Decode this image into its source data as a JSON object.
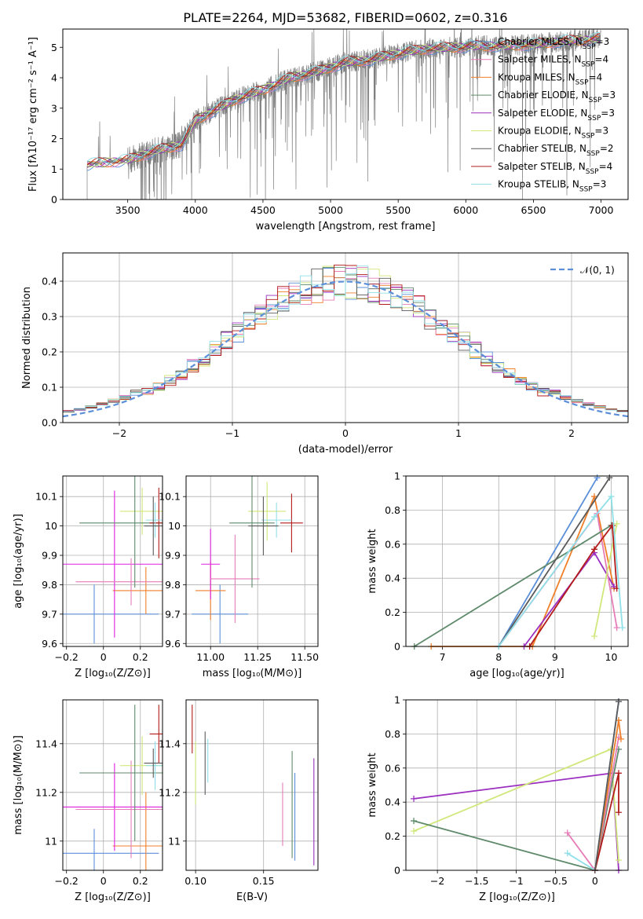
{
  "title": "PLATE=2264, MJD=53682, FIBERID=0602, z=0.316",
  "colors": [
    "#5b8fd9",
    "#f07f2a",
    "#9b2fc0",
    "#e67db8",
    "#d0e87a",
    "#5f8a6b",
    "#8b8b8b",
    "#a0b8e0",
    "#b31b1b",
    "#5a5a5a",
    "#90e0e8",
    "#e020e0"
  ],
  "chart_data": [
    {
      "type": "line",
      "name": "spectrum",
      "xlabel": "wavelength [Angstrom, rest frame]",
      "ylabel": "Flux [fλ10⁻¹⁷ erg cm⁻² s⁻¹ A⁻¹]",
      "xlim": [
        3020,
        7200
      ],
      "ylim": [
        0,
        5.6
      ],
      "xticks": [
        3500,
        4000,
        4500,
        5000,
        5500,
        6000,
        6500,
        7000
      ],
      "yticks": [
        0,
        1,
        2,
        3,
        4,
        5
      ],
      "continuum": {
        "x": [
          3200,
          3500,
          3700,
          3900,
          4000,
          4300,
          4500,
          4700,
          4900,
          5100,
          5300,
          5500,
          5700,
          5900,
          6100,
          6300,
          6500,
          6700,
          6900,
          7000
        ],
        "y": [
          1.15,
          1.3,
          1.6,
          1.8,
          2.6,
          3.3,
          3.6,
          4.0,
          4.2,
          4.5,
          4.6,
          4.8,
          4.95,
          5.0,
          5.05,
          5.05,
          5.1,
          5.2,
          5.25,
          5.3
        ]
      },
      "legend": [
        "Chabrier MILES, N_SSP=3",
        "Salpeter MILES, N_SSP=4",
        "Kroupa MILES, N_SSP=4",
        "Chabrier ELODIE, N_SSP=3",
        "Salpeter ELODIE, N_SSP=3",
        "Kroupa ELODIE, N_SSP=3",
        "Chabrier STELIB, N_SSP=2",
        "Salpeter STELIB, N_SSP=4",
        "Kroupa STELIB, N_SSP=3"
      ],
      "legend_colors": [
        "#5b8fd9",
        "#e67db8",
        "#f07f2a",
        "#5f8a6b",
        "#9b2fc0",
        "#d0e87a",
        "#5a5a5a",
        "#b31b1b",
        "#90e0e8"
      ]
    },
    {
      "type": "histogram",
      "name": "residuals",
      "xlabel": "(data-model)/error",
      "ylabel": "Normed distribution",
      "xlim": [
        -2.5,
        2.5
      ],
      "ylim": [
        0,
        0.48
      ],
      "xticks": [
        -2,
        -1,
        0,
        1,
        2
      ],
      "yticks": [
        0.0,
        0.1,
        0.2,
        0.3,
        0.4
      ],
      "legend": "𝒩(0, 1)",
      "bin_width": 0.1
    },
    {
      "type": "errorbar",
      "name": "age-vs-Z",
      "xlabel": "Z [log₁₀(Z/Z⊙)]",
      "ylabel": "age  [log₁₀(age/yr)]",
      "xlim": [
        -0.22,
        0.32
      ],
      "ylim": [
        9.59,
        10.17
      ],
      "xticks": [
        -0.2,
        0.0,
        0.2
      ],
      "yticks": [
        9.6,
        9.7,
        9.8,
        9.9,
        10.0,
        10.1
      ],
      "points": [
        {
          "x": -0.05,
          "xerr": 0.35,
          "y": 9.7,
          "yerr": 0.1,
          "c": 0
        },
        {
          "x": 0.23,
          "xerr": 0.18,
          "y": 9.78,
          "yerr": 0.08,
          "c": 1
        },
        {
          "x": 0.06,
          "xerr": 0.3,
          "y": 9.87,
          "yerr": 0.25,
          "c": 11
        },
        {
          "x": 0.15,
          "xerr": 0.3,
          "y": 9.81,
          "yerr": 0.08,
          "c": 3
        },
        {
          "x": 0.21,
          "xerr": 0.12,
          "y": 10.05,
          "yerr": 0.08,
          "c": 4
        },
        {
          "x": 0.17,
          "xerr": 0.3,
          "y": 10.01,
          "yerr": 0.22,
          "c": 5
        },
        {
          "x": 0.3,
          "xerr": 0.05,
          "y": 10.01,
          "yerr": 0.12,
          "c": 8
        },
        {
          "x": 0.28,
          "xerr": 0.05,
          "y": 10.02,
          "yerr": 0.06,
          "c": 10
        },
        {
          "x": 0.27,
          "xerr": 0.05,
          "y": 10.0,
          "yerr": 0.1,
          "c": 9
        }
      ]
    },
    {
      "type": "errorbar",
      "name": "age-vs-mass",
      "xlabel": "mass [log₁₀(M/M⊙)]",
      "ylabel": "",
      "xlim": [
        10.87,
        11.57
      ],
      "ylim": [
        9.59,
        10.17
      ],
      "xticks": [
        11.0,
        11.25,
        11.5
      ],
      "xticklabels": [
        "11.00",
        "11.25",
        "11.50"
      ],
      "yticks": [
        9.6,
        9.7,
        9.8,
        9.9,
        10.0,
        10.1
      ],
      "points": [
        {
          "x": 11.05,
          "xerr": 0.15,
          "y": 9.7,
          "yerr": 0.1,
          "c": 0
        },
        {
          "x": 11.0,
          "xerr": 0.08,
          "y": 9.78,
          "yerr": 0.1,
          "c": 1
        },
        {
          "x": 11.0,
          "xerr": 0.05,
          "y": 9.87,
          "yerr": 0.12,
          "c": 11
        },
        {
          "x": 11.13,
          "xerr": 0.13,
          "y": 9.82,
          "yerr": 0.15,
          "c": 3
        },
        {
          "x": 11.3,
          "xerr": 0.1,
          "y": 10.05,
          "yerr": 0.1,
          "c": 4
        },
        {
          "x": 11.22,
          "xerr": 0.12,
          "y": 10.01,
          "yerr": 0.22,
          "c": 5
        },
        {
          "x": 11.43,
          "xerr": 0.06,
          "y": 10.01,
          "yerr": 0.1,
          "c": 8
        },
        {
          "x": 11.35,
          "xerr": 0.08,
          "y": 10.02,
          "yerr": 0.06,
          "c": 10
        },
        {
          "x": 11.28,
          "xerr": 0.08,
          "y": 10.0,
          "yerr": 0.1,
          "c": 9
        }
      ]
    },
    {
      "type": "line",
      "name": "weight-vs-age",
      "xlabel": "age  [log₁₀(age/yr)]",
      "ylabel": "mass weight",
      "xlim": [
        6.35,
        10.3
      ],
      "ylim": [
        0,
        1.0
      ],
      "xticks": [
        7,
        8,
        9,
        10
      ],
      "yticks": [
        0.0,
        0.2,
        0.4,
        0.6,
        0.8,
        1.0
      ],
      "series": [
        {
          "c": 0,
          "x": [
            8.0,
            9.75
          ],
          "y": [
            0.0,
            0.99
          ]
        },
        {
          "c": 1,
          "x": [
            6.8,
            8.6,
            9.7,
            10.05
          ],
          "y": [
            0.0,
            0.0,
            0.88,
            0.34
          ]
        },
        {
          "c": 2,
          "x": [
            8.45,
            9.7,
            10.05
          ],
          "y": [
            0.0,
            0.55,
            0.35
          ]
        },
        {
          "c": 3,
          "x": [
            8.0,
            9.75,
            10.1
          ],
          "y": [
            0.0,
            0.78,
            0.11
          ]
        },
        {
          "c": 4,
          "x": [
            9.7,
            10.1
          ],
          "y": [
            0.06,
            0.72
          ]
        },
        {
          "c": 5,
          "x": [
            6.5,
            10.0
          ],
          "y": [
            0.0,
            0.71
          ]
        },
        {
          "c": 9,
          "x": [
            8.0,
            9.97
          ],
          "y": [
            0.0,
            0.99
          ]
        },
        {
          "c": 8,
          "x": [
            8.55,
            9.7,
            10.02,
            10.1
          ],
          "y": [
            0.0,
            0.57,
            0.71,
            0.34
          ]
        },
        {
          "c": 10,
          "x": [
            8.0,
            9.7,
            10.0,
            10.2
          ],
          "y": [
            0.0,
            0.76,
            0.88,
            0.11
          ]
        }
      ]
    },
    {
      "type": "errorbar",
      "name": "mass-vs-Z",
      "xlabel": "Z [log₁₀(Z/Z⊙)]",
      "ylabel": "mass [log₁₀(M/M⊙)]",
      "xlim": [
        -0.22,
        0.32
      ],
      "ylim": [
        10.88,
        11.58
      ],
      "xticks": [
        -0.2,
        0.0,
        0.2
      ],
      "yticks": [
        11.0,
        11.2,
        11.4
      ],
      "points": [
        {
          "x": -0.05,
          "xerr": 0.35,
          "y": 10.95,
          "yerr": 0.1,
          "c": 0
        },
        {
          "x": 0.23,
          "xerr": 0.18,
          "y": 10.98,
          "yerr": 0.22,
          "c": 1
        },
        {
          "x": 0.06,
          "xerr": 0.3,
          "y": 11.14,
          "yerr": 0.18,
          "c": 11
        },
        {
          "x": 0.15,
          "xerr": 0.3,
          "y": 11.13,
          "yerr": 0.2,
          "c": 3
        },
        {
          "x": 0.21,
          "xerr": 0.12,
          "y": 11.31,
          "yerr": 0.12,
          "c": 4
        },
        {
          "x": 0.17,
          "xerr": 0.3,
          "y": 11.28,
          "yerr": 0.28,
          "c": 5
        },
        {
          "x": 0.3,
          "xerr": 0.05,
          "y": 11.44,
          "yerr": 0.12,
          "c": 8
        },
        {
          "x": 0.28,
          "xerr": 0.05,
          "y": 11.31,
          "yerr": 0.1,
          "c": 10
        },
        {
          "x": 0.27,
          "xerr": 0.05,
          "y": 11.32,
          "yerr": 0.06,
          "c": 9
        }
      ]
    },
    {
      "type": "errorbar",
      "name": "mass-vs-ebv",
      "xlabel": "E(B-V)",
      "ylabel": "",
      "xlim": [
        0.093,
        0.19
      ],
      "ylim": [
        10.88,
        11.58
      ],
      "xticks": [
        0.1,
        0.15
      ],
      "xticklabels": [
        "0.10",
        "0.15"
      ],
      "yticks": [
        11.0,
        11.2,
        11.4
      ],
      "points": [
        {
          "x": 0.0975,
          "y": 11.46,
          "yerr": 0.1,
          "c": 8
        },
        {
          "x": 0.1,
          "y": 11.28,
          "yerr": 0.13,
          "c": 4
        },
        {
          "x": 0.107,
          "y": 11.32,
          "yerr": 0.13,
          "c": 9
        },
        {
          "x": 0.109,
          "y": 11.33,
          "yerr": 0.09,
          "c": 10
        },
        {
          "x": 0.164,
          "y": 11.11,
          "yerr": 0.13,
          "c": 3
        },
        {
          "x": 0.171,
          "y": 11.15,
          "yerr": 0.22,
          "c": 5
        },
        {
          "x": 0.173,
          "y": 11.1,
          "yerr": 0.18,
          "c": 0
        },
        {
          "x": 0.187,
          "y": 11.12,
          "yerr": 0.22,
          "c": 2
        }
      ]
    },
    {
      "type": "line",
      "name": "weight-vs-Z",
      "xlabel": "Z [log₁₀(Z/Z⊙)]",
      "ylabel": "mass weight",
      "xlim": [
        -2.4,
        0.42
      ],
      "ylim": [
        0,
        1.0
      ],
      "xticks": [
        -2.0,
        -1.5,
        -1.0,
        -0.5,
        0.0
      ],
      "yticks": [
        0.0,
        0.2,
        0.4,
        0.6,
        0.8,
        1.0
      ],
      "series": [
        {
          "c": 2,
          "x": [
            -2.3,
            0.22,
            0.3
          ],
          "y": [
            0.42,
            0.57,
            0.0
          ]
        },
        {
          "c": 4,
          "x": [
            -2.3,
            0.2,
            0.3
          ],
          "y": [
            0.23,
            0.71,
            0.06
          ]
        },
        {
          "c": 5,
          "x": [
            -2.3,
            0.0,
            0.3
          ],
          "y": [
            0.29,
            0.0,
            0.71
          ]
        },
        {
          "c": 3,
          "x": [
            -0.35,
            0.0,
            0.3
          ],
          "y": [
            0.22,
            0.0,
            0.78
          ]
        },
        {
          "c": 10,
          "x": [
            -0.35,
            0.0,
            0.3
          ],
          "y": [
            0.1,
            0.0,
            0.88
          ]
        },
        {
          "c": 0,
          "x": [
            0.0,
            0.3
          ],
          "y": [
            0.0,
            0.99
          ]
        },
        {
          "c": 1,
          "x": [
            0.0,
            0.3,
            0.33
          ],
          "y": [
            0.0,
            0.88,
            0.77
          ]
        },
        {
          "c": 8,
          "x": [
            0.0,
            0.3,
            0.3
          ],
          "y": [
            0.0,
            0.57,
            0.34
          ]
        },
        {
          "c": 9,
          "x": [
            0.0,
            0.3
          ],
          "y": [
            0.0,
            0.99
          ]
        }
      ]
    }
  ]
}
